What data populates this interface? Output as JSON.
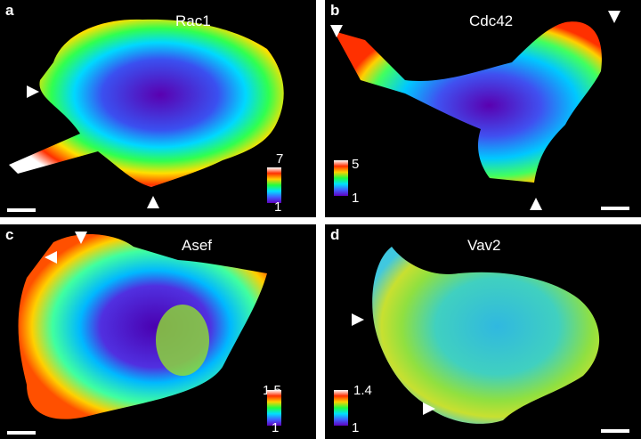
{
  "panels": [
    {
      "id": "a",
      "letter": "a",
      "title": "Rac1",
      "cbar_max": "7",
      "cbar_min": "1"
    },
    {
      "id": "b",
      "letter": "b",
      "title": "Cdc42",
      "cbar_max": "5",
      "cbar_min": "1"
    },
    {
      "id": "c",
      "letter": "c",
      "title": "Asef",
      "cbar_max": "1.5",
      "cbar_min": "1"
    },
    {
      "id": "d",
      "letter": "d",
      "title": "Vav2",
      "cbar_max": "1.4",
      "cbar_min": "1"
    }
  ],
  "colormap": [
    "#ffffff",
    "#ff3000",
    "#ffd000",
    "#20ff40",
    "#00e0ff",
    "#4060ff",
    "#6000c0"
  ]
}
